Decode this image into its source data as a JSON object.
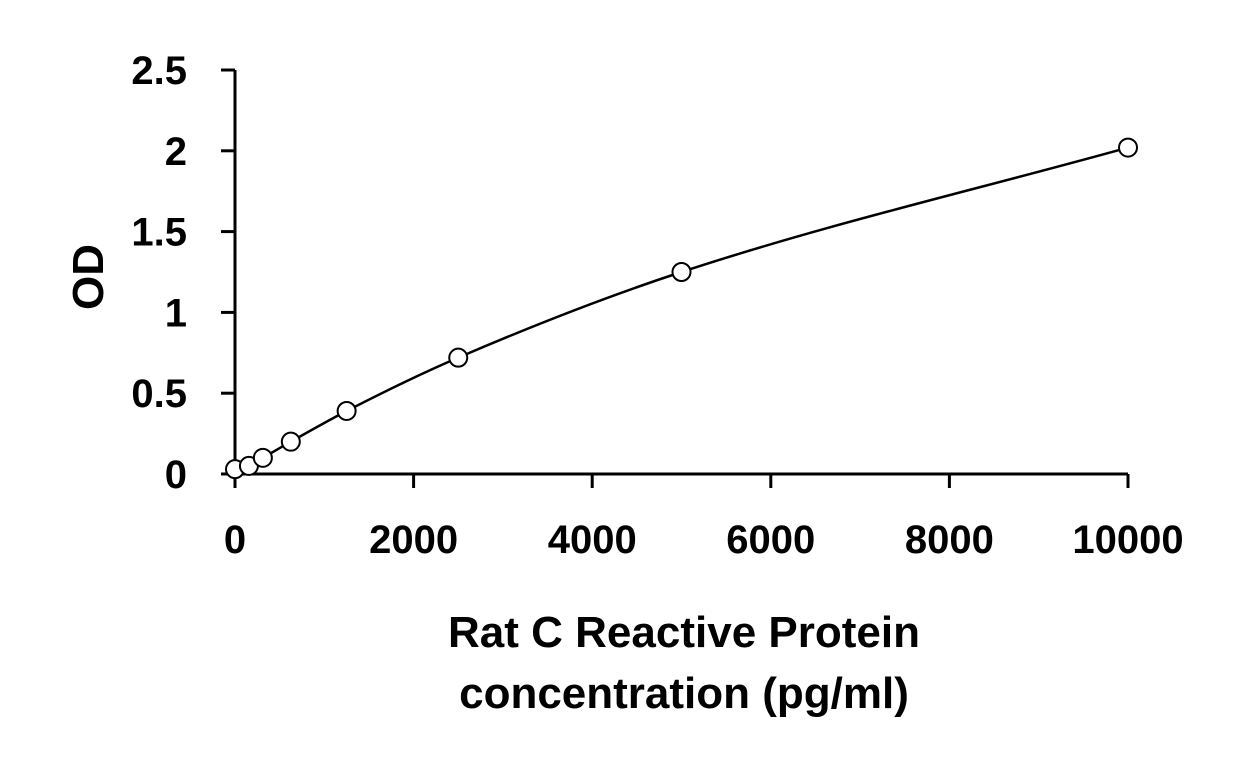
{
  "chart_data": {
    "type": "scatter",
    "title": "",
    "xlabel_lines": [
      "Rat C Reactive Protein",
      "concentration (pg/ml)"
    ],
    "ylabel": "OD",
    "xlim": [
      0,
      10000
    ],
    "ylim": [
      0,
      2.5
    ],
    "x_ticks": [
      0,
      2000,
      4000,
      6000,
      8000,
      10000
    ],
    "y_ticks": [
      0,
      0.5,
      1,
      1.5,
      2,
      2.5
    ],
    "x_tick_labels": [
      "0",
      "2000",
      "4000",
      "6000",
      "8000",
      "10000"
    ],
    "y_tick_labels": [
      "0",
      "0.5",
      "1",
      "1.5",
      "2",
      "2.5"
    ],
    "grid": false,
    "legend": "none",
    "series": [
      {
        "points": [
          {
            "x": 0,
            "y": 0.03
          },
          {
            "x": 156,
            "y": 0.05
          },
          {
            "x": 312,
            "y": 0.1
          },
          {
            "x": 625,
            "y": 0.2
          },
          {
            "x": 1250,
            "y": 0.39
          },
          {
            "x": 2500,
            "y": 0.72
          },
          {
            "x": 5000,
            "y": 1.25
          },
          {
            "x": 10000,
            "y": 2.02
          }
        ],
        "marker": "open-circle",
        "fit": "smooth-curve"
      }
    ],
    "colors": {
      "line": "#000000",
      "marker_edge": "#000000",
      "marker_fill": "#ffffff"
    }
  }
}
